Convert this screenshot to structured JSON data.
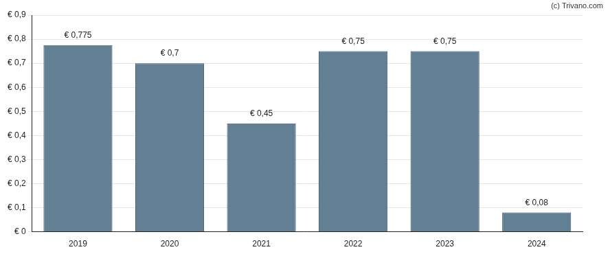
{
  "chart_data": {
    "type": "bar",
    "annotations": [
      "(c) Trivano.com"
    ],
    "categories": [
      "2019",
      "2020",
      "2021",
      "2022",
      "2023",
      "2024"
    ],
    "values": [
      0.775,
      0.7,
      0.45,
      0.75,
      0.75,
      0.08
    ],
    "value_labels": [
      "€ 0,775",
      "€ 0,7",
      "€ 0,45",
      "€ 0,75",
      "€ 0,75",
      "€ 0,08"
    ],
    "color": "#637f93",
    "ylim": [
      0,
      0.9
    ],
    "yticks": [
      {
        "value": 0,
        "label": "€ 0"
      },
      {
        "value": 0.1,
        "label": "€ 0,1"
      },
      {
        "value": 0.2,
        "label": "€ 0,2"
      },
      {
        "value": 0.3,
        "label": "€ 0,3"
      },
      {
        "value": 0.4,
        "label": "€ 0,4"
      },
      {
        "value": 0.5,
        "label": "€ 0,5"
      },
      {
        "value": 0.6,
        "label": "€ 0,6"
      },
      {
        "value": 0.7,
        "label": "€ 0,7"
      },
      {
        "value": 0.8,
        "label": "€ 0,8"
      },
      {
        "value": 0.9,
        "label": "€ 0,9"
      }
    ],
    "grid": true,
    "data_labels": true
  }
}
